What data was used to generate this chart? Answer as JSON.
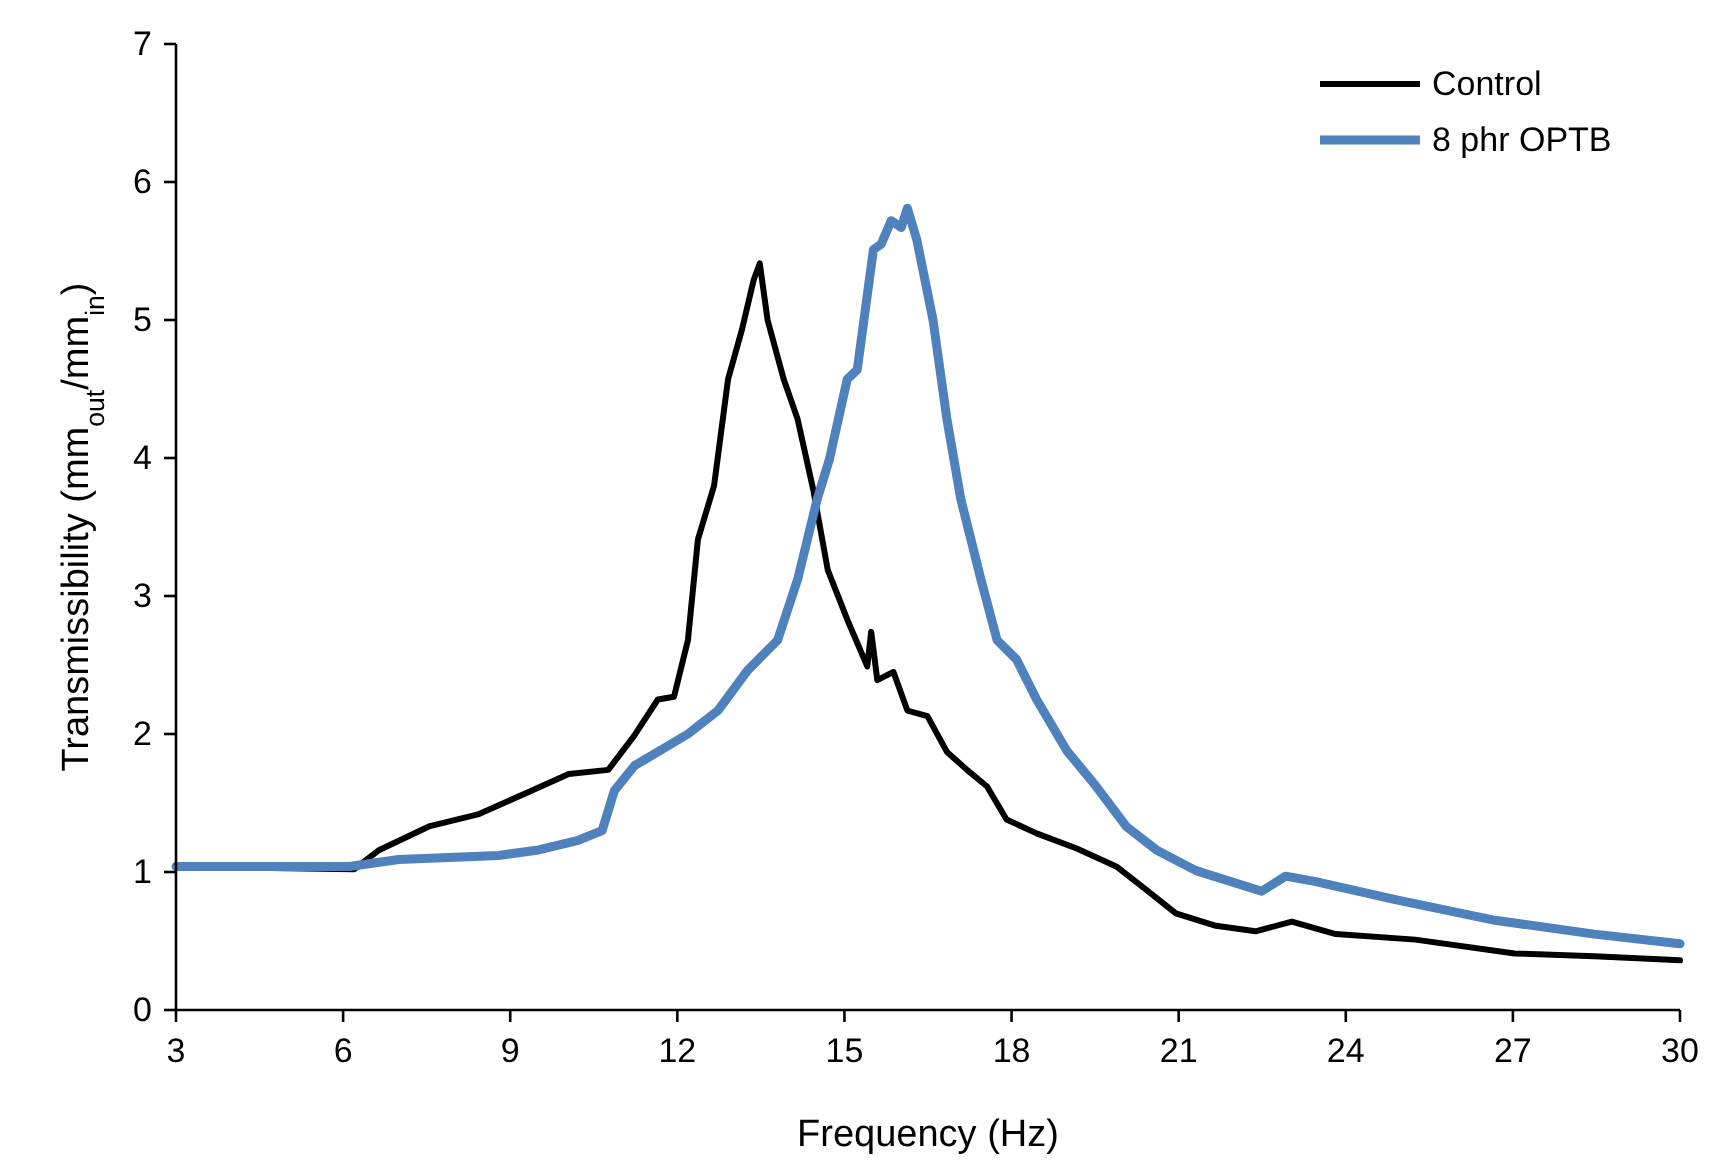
{
  "chart_data": {
    "type": "line",
    "xlabel": "Frequency (Hz)",
    "ylabel": "Transmissibility (mm$_{out}$/mm$_{in}$)",
    "xlim": [
      3,
      30
    ],
    "xticks": [
      3,
      6,
      9,
      12,
      15,
      18,
      21,
      24,
      27,
      30
    ],
    "ylim": [
      0,
      7
    ],
    "yticks": [
      0,
      1,
      2,
      3,
      4,
      5,
      6,
      7
    ],
    "grid": false,
    "legend": "top right",
    "marker": "none",
    "line_style": "solid",
    "series": [
      {
        "name": "Control",
        "color": "#000000",
        "x": [
          3,
          6.2,
          6.65,
          7.54,
          8.44,
          9.33,
          10.05,
          10.76,
          11.23,
          11.65,
          11.94,
          12.19,
          12.37,
          12.66,
          12.91,
          13.16,
          13.37,
          13.48,
          13.62,
          13.91,
          14.16,
          14.44,
          14.7,
          15.05,
          15.41,
          15.48,
          15.59,
          15.88,
          16.13,
          16.49,
          16.84,
          17.2,
          17.56,
          17.91,
          18.45,
          19.17,
          19.88,
          20.42,
          20.95,
          21.67,
          22.38,
          23.03,
          23.82,
          25.25,
          27.03,
          28.46,
          30
        ],
        "values": [
          1.04,
          1.02,
          1.16,
          1.33,
          1.42,
          1.58,
          1.71,
          1.74,
          1.99,
          2.25,
          2.27,
          2.68,
          3.41,
          3.8,
          4.57,
          4.93,
          5.29,
          5.41,
          5.0,
          4.57,
          4.28,
          3.77,
          3.19,
          2.83,
          2.49,
          2.74,
          2.39,
          2.45,
          2.17,
          2.13,
          1.87,
          1.74,
          1.62,
          1.38,
          1.28,
          1.17,
          1.04,
          0.87,
          0.7,
          0.61,
          0.57,
          0.64,
          0.55,
          0.51,
          0.41,
          0.39,
          0.36
        ]
      },
      {
        "name": "8 phr OPTB",
        "color": "#4f81bd",
        "x": [
          3,
          6.11,
          7.0,
          8.79,
          9.51,
          10.22,
          10.65,
          10.87,
          11.23,
          11.65,
          12.19,
          12.73,
          13.26,
          13.8,
          14.16,
          14.51,
          14.73,
          15.05,
          15.23,
          15.52,
          15.66,
          15.84,
          16.02,
          16.13,
          16.3,
          16.59,
          16.84,
          17.09,
          17.27,
          17.45,
          17.74,
          18.09,
          18.45,
          18.99,
          19.52,
          20.06,
          20.6,
          21.31,
          22.49,
          22.92,
          23.46,
          24.89,
          26.68,
          28.46,
          30
        ],
        "values": [
          1.04,
          1.04,
          1.09,
          1.12,
          1.16,
          1.23,
          1.3,
          1.59,
          1.77,
          1.87,
          2.0,
          2.17,
          2.46,
          2.68,
          3.12,
          3.7,
          3.99,
          4.57,
          4.64,
          5.51,
          5.55,
          5.72,
          5.67,
          5.81,
          5.58,
          5.0,
          4.28,
          3.7,
          3.41,
          3.12,
          2.68,
          2.54,
          2.25,
          1.88,
          1.62,
          1.33,
          1.16,
          1.01,
          0.86,
          0.97,
          0.93,
          0.8,
          0.65,
          0.55,
          0.48
        ]
      }
    ]
  }
}
